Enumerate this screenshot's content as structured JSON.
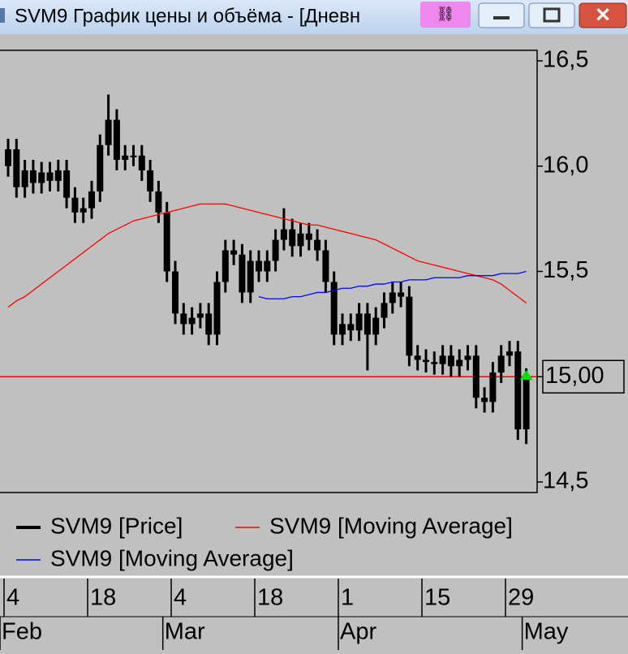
{
  "window_title": "SVM9 График цены и объёма - [Дневн",
  "chart_data": {
    "type": "candlestick",
    "categories": [
      "4",
      null,
      null,
      null,
      null,
      null,
      null,
      null,
      null,
      null,
      "18",
      null,
      null,
      null,
      null,
      null,
      null,
      null,
      null,
      null,
      "4",
      null,
      null,
      null,
      null,
      null,
      null,
      null,
      null,
      null,
      "18",
      null,
      null,
      null,
      null,
      null,
      null,
      null,
      null,
      null,
      "1",
      null,
      null,
      null,
      null,
      null,
      null,
      null,
      null,
      null,
      "15",
      null,
      null,
      null,
      null,
      null,
      null,
      null,
      null,
      null,
      "29",
      null,
      null
    ],
    "months": [
      "Feb",
      null,
      null,
      null,
      null,
      null,
      null,
      null,
      null,
      null,
      null,
      null,
      null,
      null,
      null,
      null,
      null,
      null,
      null,
      "Mar",
      null,
      null,
      null,
      null,
      null,
      null,
      null,
      null,
      null,
      null,
      null,
      null,
      null,
      null,
      null,
      null,
      null,
      null,
      null,
      null,
      "Apr",
      null,
      null,
      null,
      null,
      null,
      null,
      null,
      null,
      null,
      null,
      null,
      null,
      null,
      null,
      null,
      null,
      null,
      null,
      null,
      null,
      null,
      "May"
    ],
    "series": [
      {
        "name": "SVM9 [Price]",
        "color": "#000000",
        "open": [
          16.0,
          16.08,
          15.9,
          15.98,
          15.92,
          15.97,
          15.93,
          15.98,
          15.85,
          15.78,
          15.8,
          15.88,
          16.1,
          16.22,
          16.03,
          16.05,
          16.05,
          15.98,
          15.88,
          15.78,
          15.5,
          15.3,
          15.25,
          15.28,
          15.3,
          15.2,
          15.45,
          15.6,
          15.58,
          15.4,
          15.55,
          15.5,
          15.55,
          15.65,
          15.7,
          15.62,
          15.68,
          15.65,
          15.6,
          15.45,
          15.2,
          15.25,
          15.22,
          15.3,
          15.2,
          15.28,
          15.35,
          15.4,
          15.38,
          15.1,
          15.08,
          15.07,
          15.06,
          15.1,
          15.05,
          15.08,
          15.1,
          14.9,
          14.88,
          15.02,
          15.1,
          15.12,
          14.75
        ],
        "high": [
          16.13,
          16.13,
          16.03,
          16.03,
          16.02,
          16.02,
          16.03,
          16.03,
          15.9,
          15.85,
          15.93,
          16.15,
          16.34,
          16.27,
          16.1,
          16.1,
          16.1,
          16.03,
          15.93,
          15.83,
          15.55,
          15.35,
          15.33,
          15.35,
          15.35,
          15.5,
          15.65,
          15.65,
          15.63,
          15.6,
          15.6,
          15.6,
          15.7,
          15.8,
          15.75,
          15.73,
          15.73,
          15.7,
          15.65,
          15.5,
          15.3,
          15.3,
          15.35,
          15.35,
          15.33,
          15.4,
          15.45,
          15.45,
          15.43,
          15.15,
          15.13,
          15.12,
          15.15,
          15.15,
          15.13,
          15.15,
          15.15,
          14.95,
          15.07,
          15.15,
          15.17,
          15.17,
          15.04
        ],
        "low": [
          15.95,
          15.85,
          15.85,
          15.87,
          15.87,
          15.88,
          15.88,
          15.8,
          15.73,
          15.73,
          15.75,
          15.83,
          16.05,
          15.98,
          15.98,
          16.0,
          15.93,
          15.83,
          15.73,
          15.45,
          15.25,
          15.2,
          15.2,
          15.23,
          15.15,
          15.15,
          15.4,
          15.53,
          15.35,
          15.35,
          15.45,
          15.45,
          15.5,
          15.6,
          15.57,
          15.57,
          15.6,
          15.55,
          15.4,
          15.15,
          15.15,
          15.17,
          15.17,
          15.03,
          15.15,
          15.23,
          15.3,
          15.33,
          15.05,
          15.03,
          15.02,
          15.01,
          15.01,
          15.0,
          15.0,
          15.03,
          14.85,
          14.83,
          14.83,
          14.97,
          15.05,
          14.7,
          14.68
        ],
        "close": [
          16.08,
          15.9,
          15.98,
          15.92,
          15.97,
          15.93,
          15.98,
          15.85,
          15.78,
          15.8,
          15.88,
          16.1,
          16.22,
          16.03,
          16.05,
          16.05,
          15.98,
          15.88,
          15.78,
          15.5,
          15.3,
          15.25,
          15.28,
          15.3,
          15.2,
          15.45,
          15.6,
          15.58,
          15.4,
          15.55,
          15.5,
          15.55,
          15.65,
          15.7,
          15.62,
          15.68,
          15.65,
          15.6,
          15.45,
          15.2,
          15.25,
          15.22,
          15.3,
          15.2,
          15.28,
          15.35,
          15.4,
          15.38,
          15.1,
          15.08,
          15.07,
          15.06,
          15.1,
          15.05,
          15.08,
          15.1,
          14.9,
          14.88,
          15.02,
          15.1,
          15.12,
          14.75,
          15.0
        ]
      },
      {
        "name": "SVM9 [Moving Average]",
        "color": "#ff0000",
        "values": [
          15.33,
          15.36,
          15.38,
          15.41,
          15.44,
          15.47,
          15.5,
          15.53,
          15.56,
          15.59,
          15.62,
          15.65,
          15.68,
          15.7,
          15.72,
          15.74,
          15.75,
          15.76,
          15.77,
          15.78,
          15.79,
          15.8,
          15.81,
          15.82,
          15.82,
          15.82,
          15.82,
          15.81,
          15.8,
          15.79,
          15.78,
          15.77,
          15.76,
          15.75,
          15.74,
          15.73,
          15.72,
          15.72,
          15.71,
          15.7,
          15.69,
          15.68,
          15.67,
          15.66,
          15.65,
          15.63,
          15.61,
          15.59,
          15.57,
          15.55,
          15.54,
          15.53,
          15.52,
          15.51,
          15.5,
          15.49,
          15.48,
          15.47,
          15.46,
          15.44,
          15.41,
          15.38,
          15.35
        ]
      },
      {
        "name": "SVM9 [Moving Average]",
        "color": "#0000ff",
        "values": [
          null,
          null,
          null,
          null,
          null,
          null,
          null,
          null,
          null,
          null,
          null,
          null,
          null,
          null,
          null,
          null,
          null,
          null,
          null,
          null,
          null,
          null,
          null,
          null,
          null,
          null,
          null,
          null,
          null,
          null,
          15.38,
          15.37,
          15.37,
          15.37,
          15.38,
          15.38,
          15.39,
          15.4,
          15.4,
          15.41,
          15.42,
          15.42,
          15.43,
          15.43,
          15.44,
          15.44,
          15.45,
          15.45,
          15.46,
          15.46,
          15.46,
          15.47,
          15.47,
          15.47,
          15.47,
          15.48,
          15.48,
          15.48,
          15.48,
          15.49,
          15.49,
          15.49,
          15.5
        ]
      }
    ],
    "ylim": [
      14.45,
      16.55
    ],
    "yticks": [
      {
        "value": 14.5,
        "label": "14,5"
      },
      {
        "value": 15.5,
        "label": "15,5"
      },
      {
        "value": 16.0,
        "label": "16,0"
      },
      {
        "value": 16.5,
        "label": "16,5"
      }
    ],
    "last_price": {
      "value": 15.0,
      "label": "15,00"
    },
    "last_price_line_color": "#ff0000",
    "last_price_marker_color": "#00dd00"
  }
}
